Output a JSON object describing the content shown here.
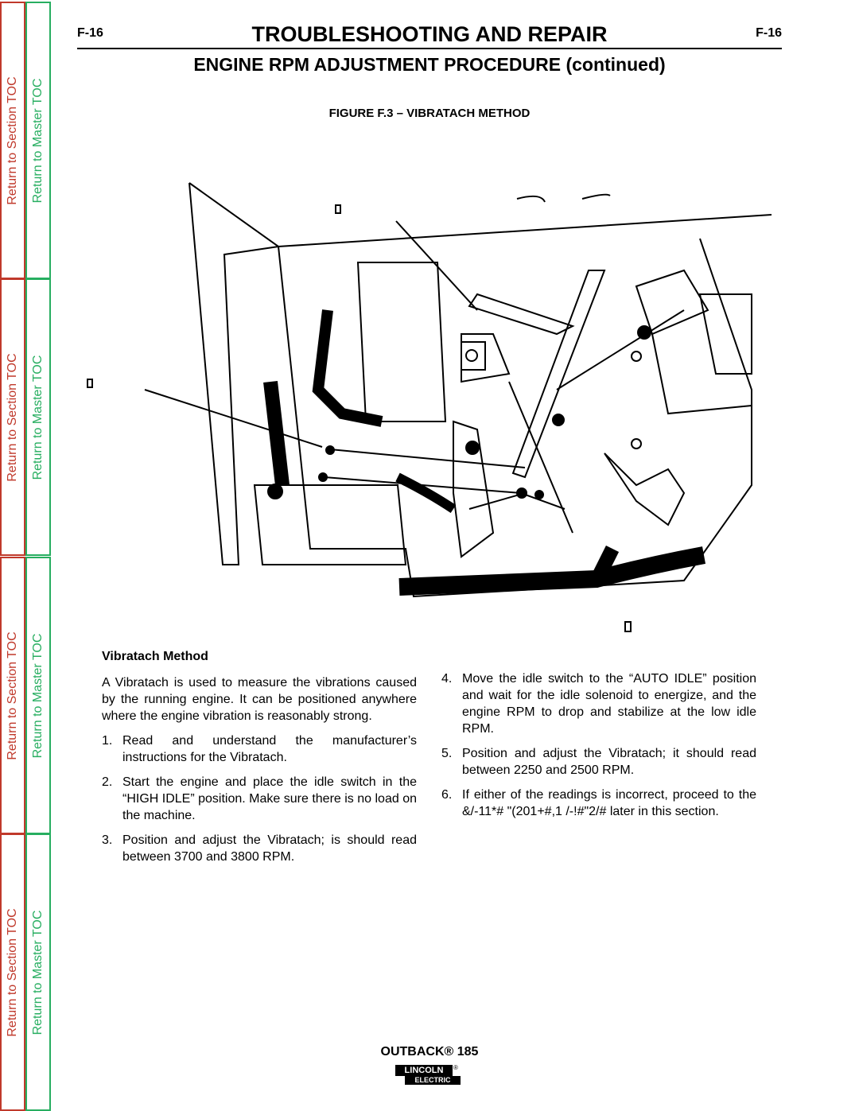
{
  "header": {
    "page_left": "F-16",
    "title": "TROUBLESHOOTING AND REPAIR",
    "page_right": "F-16",
    "subtitle": "ENGINE RPM ADJUSTMENT PROCEDURE (continued)"
  },
  "figure": {
    "caption": "FIGURE F.3 – VIBRATACH METHOD"
  },
  "sidebar": {
    "section_links": [
      "Return to Section TOC",
      "Return to Section TOC",
      "Return to Section TOC",
      "Return to Section TOC"
    ],
    "master_links": [
      "Return to Master TOC",
      "Return to Master TOC",
      "Return to Master TOC",
      "Return to Master TOC"
    ]
  },
  "body": {
    "heading": "Vibratach Method",
    "intro": "A Vibratach is used to measure the vibrations caused by the running engine. It can be positioned anywhere where the engine vibration is reasonably strong.",
    "steps": [
      {
        "number": "1.",
        "text": "Read and understand the manufacturer’s instructions for the Vibratach."
      },
      {
        "number": "2.",
        "text": "Start the engine and place the idle switch in the “HIGH IDLE” position. Make sure there is no load on the machine."
      },
      {
        "number": "3.",
        "text": "Position and adjust the Vibratach; is should read between 3700 and 3800 RPM."
      },
      {
        "number": "4.",
        "text": "Move the idle switch to the “AUTO IDLE” position and wait for the idle solenoid to energize, and the engine RPM to drop and stabilize at the low idle RPM."
      },
      {
        "number": "5.",
        "text": "Position and adjust the Vibratach; it should read between 2250 and 2500 RPM."
      },
      {
        "number": "6.",
        "text": "If either of the readings is incorrect, proceed to the &/-11*# \"(201+#,1 /-!#\"2/# later in this section."
      }
    ]
  },
  "footer": {
    "model": "OUTBACK® 185",
    "logo_top": "LINCOLN",
    "logo_mark": "®",
    "logo_bottom": "ELECTRIC"
  }
}
